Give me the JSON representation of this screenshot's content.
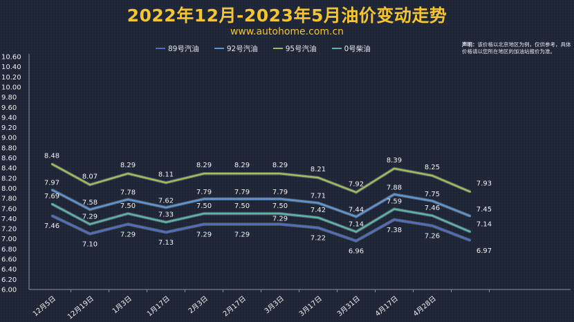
{
  "header": {
    "title": "2022年12月-2023年5月油价变动走势",
    "subtitle": "www.autohome.com.cn"
  },
  "note": {
    "title": "声明：",
    "text": "该价格以北京地区为例，仅供参考，具体价格请以您所在地区的加油站报价为准。"
  },
  "colors": {
    "background": "#1e2536",
    "title": "#f4c431",
    "s89": "#4e6fc4",
    "s92": "#5a97d6",
    "s95": "#9fbf59",
    "s0": "#59b7a8"
  },
  "chart_data": {
    "type": "line",
    "title": "2022年12月-2023年5月油价变动走势",
    "xlabel": "",
    "ylabel": "",
    "ylim": [
      6.0,
      10.6
    ],
    "ytick_step": 0.2,
    "grid": false,
    "legend_position": "top",
    "categories": [
      "12月5日",
      "12月19日",
      "1月3日",
      "1月17日",
      "2月3日",
      "2月17日",
      "3月3日",
      "3月17日",
      "3月31日",
      "4月17日",
      "4月28日",
      ""
    ],
    "series": [
      {
        "name": "89号汽油",
        "color": "#4e6fc4",
        "values": [
          7.46,
          7.1,
          7.29,
          7.13,
          7.29,
          7.29,
          7.29,
          7.22,
          6.96,
          7.38,
          7.26,
          6.97
        ]
      },
      {
        "name": "92号汽油",
        "color": "#5a97d6",
        "values": [
          7.97,
          7.58,
          7.78,
          7.62,
          7.79,
          7.79,
          7.79,
          7.71,
          7.44,
          7.88,
          7.75,
          7.45
        ]
      },
      {
        "name": "95号汽油",
        "color": "#9fbf59",
        "values": [
          8.48,
          8.07,
          8.29,
          8.11,
          8.29,
          8.29,
          8.29,
          8.21,
          7.92,
          8.39,
          8.25,
          7.93
        ]
      },
      {
        "name": "0号柴油",
        "color": "#59b7a8",
        "values": [
          7.69,
          7.29,
          7.5,
          7.33,
          7.5,
          7.5,
          7.5,
          7.42,
          7.14,
          7.59,
          7.46,
          7.14
        ]
      }
    ],
    "data_labels": [
      [
        "7.46",
        "7.10",
        "7.29",
        "7.13",
        "7.29",
        "7.29",
        "",
        "7.22",
        "6.96",
        "7.38",
        "7.26",
        "6.97"
      ],
      [
        "7.97",
        "7.58",
        "7.78",
        "7.62",
        "7.79",
        "7.79",
        "7.79",
        "7.71",
        "7.44",
        "7.88",
        "7.75",
        "7.45"
      ],
      [
        "8.48",
        "8.07",
        "8.29",
        "8.11",
        "8.29",
        "8.29",
        "8.29",
        "8.21",
        "7.92",
        "8.39",
        "8.25",
        "7.93"
      ],
      [
        "7.69",
        "7.29",
        "7.50",
        "7.33",
        "7.50",
        "7.50",
        "7.50",
        "7.42",
        "7.14",
        "7.59",
        "7.46",
        "7.14"
      ]
    ],
    "series_labels": [
      "7.29"
    ]
  }
}
